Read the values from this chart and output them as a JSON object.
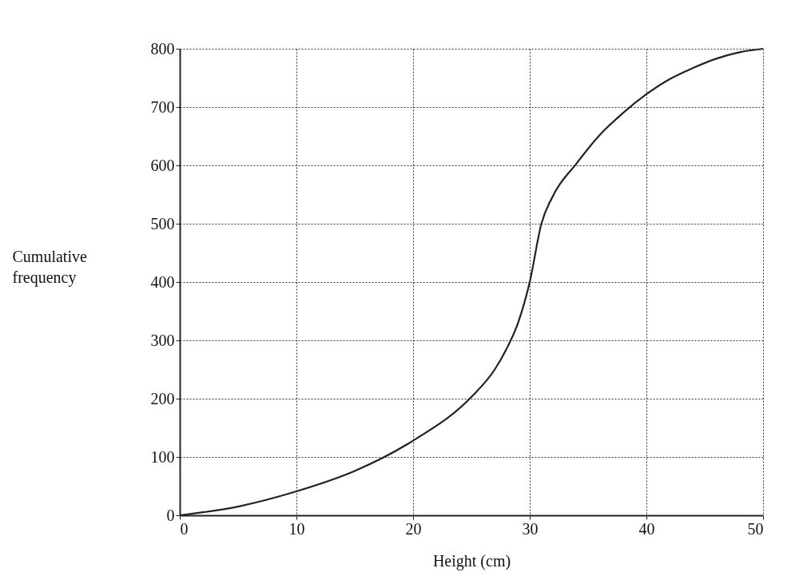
{
  "chart_data": {
    "type": "line",
    "xlabel": "Height (cm)",
    "ylabel": "Cumulative frequency",
    "xlim": [
      0,
      50
    ],
    "ylim": [
      0,
      800
    ],
    "xticks": [
      0,
      10,
      20,
      30,
      40,
      50
    ],
    "yticks": [
      0,
      100,
      200,
      300,
      400,
      500,
      600,
      700,
      800
    ],
    "grid": true,
    "marker": "none",
    "line_style": "solid",
    "series": [
      {
        "color": "#222222",
        "x": [
          0,
          5,
          10,
          15,
          20,
          25,
          27,
          28,
          29,
          30,
          31,
          32,
          34,
          36,
          38,
          40,
          42,
          44,
          46,
          48,
          50
        ],
        "values": [
          0,
          15,
          41,
          76,
          128,
          203,
          250,
          285,
          330,
          400,
          500,
          548,
          603,
          652,
          690,
          722,
          748,
          767,
          783,
          794,
          800
        ]
      }
    ]
  }
}
